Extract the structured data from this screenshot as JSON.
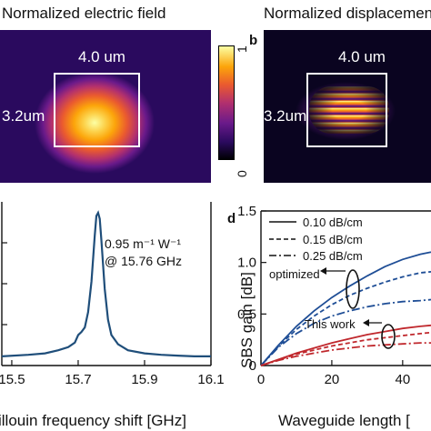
{
  "panel_a": {
    "title": "Normalized electric field",
    "width_label": "4.0 um",
    "height_label": "3.2um"
  },
  "colorbar": {
    "max_label": "1",
    "min_label": "0",
    "colors": [
      "#000000",
      "#2a0a5e",
      "#6a1a8a",
      "#b2306e",
      "#ea5a2f",
      "#fca50a",
      "#fcffa4"
    ]
  },
  "panel_b": {
    "letter": "b",
    "title": "Normalized displacemen",
    "width_label": "4.0 um",
    "height_label": "3.2um"
  },
  "panel_c": {
    "annotation_line1": "0.95 m⁻¹ W⁻¹",
    "annotation_line2": "@ 15.76 GHz",
    "xlabel": "illouin frequency shift [GHz]"
  },
  "panel_d": {
    "letter": "d",
    "ylabel": "SBS gain [dB]",
    "xlabel": "Waveguide length [",
    "legend": [
      "0.10 dB/cm",
      "0.15 dB/cm",
      "0.25 dB/cm"
    ],
    "label_optimized": "optimized",
    "label_this_work": "This work"
  },
  "chart_data": [
    {
      "type": "line",
      "xlabel": "illouin frequency shift [GHz]",
      "x_ticks": [
        "15.5",
        "15.7",
        "15.9",
        "16.1"
      ],
      "xlim": [
        15.47,
        16.1
      ],
      "series": [
        {
          "x": [
            15.47,
            15.55,
            15.6,
            15.64,
            15.67,
            15.69,
            15.7,
            15.71,
            15.72,
            15.73,
            15.74,
            15.75,
            15.755,
            15.76,
            15.765,
            15.77,
            15.78,
            15.79,
            15.8,
            15.82,
            15.85,
            15.9,
            15.95,
            16.0,
            16.05,
            16.1
          ],
          "y": [
            0.06,
            0.07,
            0.08,
            0.1,
            0.12,
            0.15,
            0.2,
            0.22,
            0.25,
            0.35,
            0.55,
            0.85,
            0.98,
            1.0,
            0.96,
            0.82,
            0.5,
            0.3,
            0.2,
            0.14,
            0.1,
            0.08,
            0.07,
            0.065,
            0.06,
            0.06
          ]
        }
      ]
    },
    {
      "type": "line",
      "ylabel": "SBS gain [dB]",
      "xlabel": "Waveguide length [",
      "x_ticks": [
        "0",
        "20",
        "40"
      ],
      "y_ticks": [
        "0",
        "0.5",
        "1.0",
        "1.5"
      ],
      "xlim": [
        0,
        48
      ],
      "ylim": [
        0,
        1.5
      ],
      "series": [
        {
          "name": "0.10 dB/cm",
          "group": "optimized",
          "color": "#1f4e96",
          "dash": "solid",
          "x": [
            0,
            5,
            10,
            15,
            20,
            25,
            30,
            35,
            40,
            45,
            48
          ],
          "y": [
            0,
            0.2,
            0.38,
            0.53,
            0.66,
            0.77,
            0.87,
            0.96,
            1.03,
            1.08,
            1.1
          ]
        },
        {
          "name": "0.15 dB/cm",
          "group": "optimized",
          "color": "#1f4e96",
          "dash": "dashed",
          "x": [
            0,
            5,
            10,
            15,
            20,
            25,
            30,
            35,
            40,
            45,
            48
          ],
          "y": [
            0,
            0.19,
            0.35,
            0.48,
            0.59,
            0.68,
            0.75,
            0.81,
            0.86,
            0.9,
            0.91
          ]
        },
        {
          "name": "0.25 dB/cm",
          "group": "optimized",
          "color": "#1f4e96",
          "dash": "dashdot",
          "x": [
            0,
            5,
            10,
            15,
            20,
            25,
            30,
            35,
            40,
            45,
            48
          ],
          "y": [
            0,
            0.18,
            0.31,
            0.41,
            0.48,
            0.53,
            0.57,
            0.6,
            0.62,
            0.63,
            0.64
          ]
        },
        {
          "name": "0.10 dB/cm",
          "group": "This work",
          "color": "#c0282d",
          "dash": "solid",
          "x": [
            0,
            5,
            10,
            15,
            20,
            25,
            30,
            35,
            40,
            45,
            48
          ],
          "y": [
            0,
            0.06,
            0.12,
            0.17,
            0.22,
            0.26,
            0.3,
            0.33,
            0.36,
            0.38,
            0.39
          ]
        },
        {
          "name": "0.15 dB/cm",
          "group": "This work",
          "color": "#c0282d",
          "dash": "dashed",
          "x": [
            0,
            5,
            10,
            15,
            20,
            25,
            30,
            35,
            40,
            45,
            48
          ],
          "y": [
            0,
            0.055,
            0.11,
            0.15,
            0.19,
            0.22,
            0.25,
            0.27,
            0.29,
            0.31,
            0.32
          ]
        },
        {
          "name": "0.25 dB/cm",
          "group": "This work",
          "color": "#c0282d",
          "dash": "dashdot",
          "x": [
            0,
            5,
            10,
            15,
            20,
            25,
            30,
            35,
            40,
            45,
            48
          ],
          "y": [
            0,
            0.05,
            0.09,
            0.12,
            0.15,
            0.17,
            0.19,
            0.2,
            0.21,
            0.22,
            0.22
          ]
        }
      ]
    }
  ]
}
